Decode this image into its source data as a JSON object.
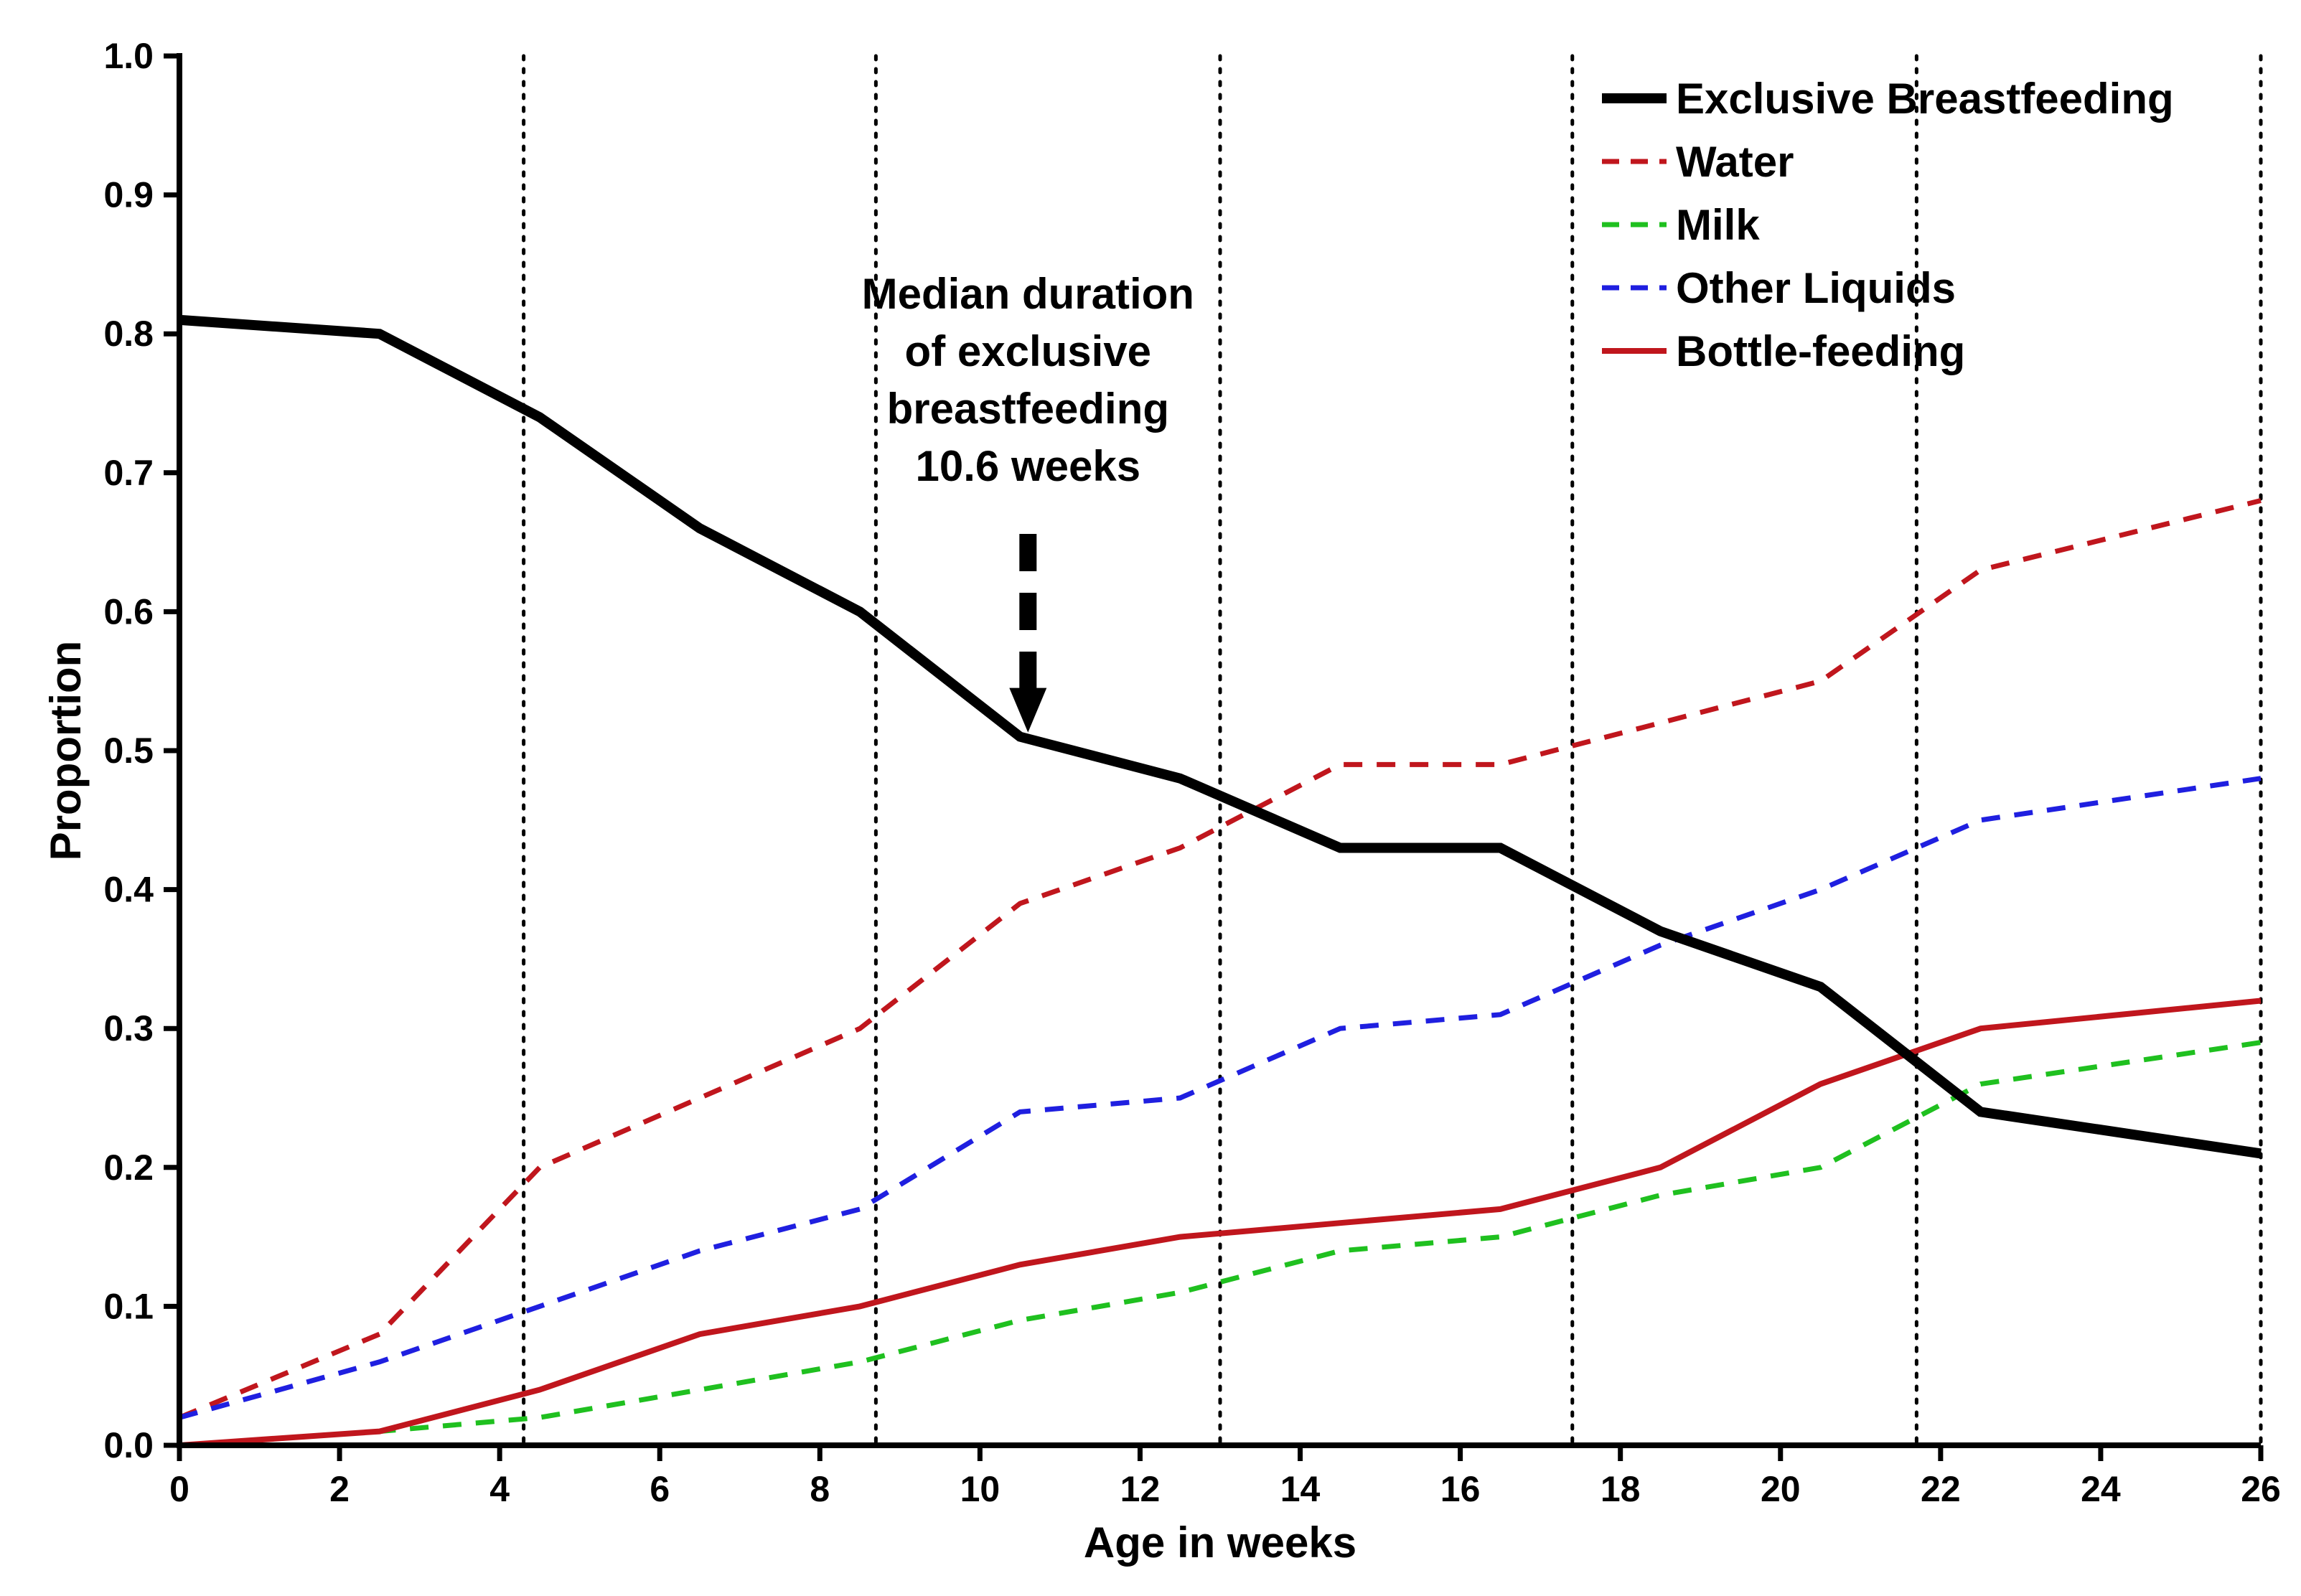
{
  "chart_data": {
    "type": "line",
    "title": "",
    "xlabel": "Age in weeks",
    "ylabel": "Proportion",
    "xlim": [
      0,
      26
    ],
    "ylim": [
      0,
      1.0
    ],
    "x_ticks": [
      0,
      2,
      4,
      6,
      8,
      10,
      12,
      14,
      16,
      18,
      20,
      22,
      24,
      26
    ],
    "x_tick_labels": [
      "0",
      "2",
      "4",
      "6",
      "8",
      "10",
      "12",
      "14",
      "16",
      "18",
      "20",
      "22",
      "24",
      "26"
    ],
    "y_ticks": [
      0,
      0.1,
      0.2,
      0.3,
      0.4,
      0.5,
      0.6,
      0.7,
      0.8,
      0.9,
      1.0
    ],
    "y_tick_labels": [
      "0.0",
      "0.1",
      "0.2",
      "0.3",
      "0.4",
      "0.5",
      "0.6",
      "0.7",
      "0.8",
      "0.9",
      "1.0"
    ],
    "vertical_reference_lines": [
      4.3,
      8.7,
      13.0,
      17.4,
      21.7,
      26.0
    ],
    "legend_position": "top-right",
    "series": [
      {
        "name": "Exclusive Breastfeeding",
        "color": "#000000",
        "style": "solid-thick",
        "x": [
          0,
          2.5,
          4.5,
          6.5,
          8.5,
          10.5,
          12.5,
          14.5,
          16.5,
          18.5,
          20.5,
          22.5,
          26
        ],
        "values": [
          0.81,
          0.8,
          0.74,
          0.66,
          0.6,
          0.51,
          0.48,
          0.43,
          0.43,
          0.37,
          0.33,
          0.24,
          0.21
        ]
      },
      {
        "name": "Water",
        "color": "#c0161d",
        "style": "dashed",
        "x": [
          0,
          2.5,
          4.5,
          6.5,
          8.5,
          10.5,
          12.5,
          14.5,
          16.5,
          18.5,
          20.5,
          22.5,
          26
        ],
        "values": [
          0.02,
          0.08,
          0.2,
          0.25,
          0.3,
          0.39,
          0.43,
          0.49,
          0.49,
          0.52,
          0.55,
          0.63,
          0.68
        ]
      },
      {
        "name": "Milk",
        "color": "#1fc01f",
        "style": "dashed",
        "x": [
          0,
          2.5,
          4.5,
          6.5,
          8.5,
          10.5,
          12.5,
          14.5,
          16.5,
          18.5,
          20.5,
          22.5,
          26
        ],
        "values": [
          0.0,
          0.01,
          0.02,
          0.04,
          0.06,
          0.09,
          0.11,
          0.14,
          0.15,
          0.18,
          0.2,
          0.26,
          0.29
        ]
      },
      {
        "name": "Other Liquids",
        "color": "#1f1fe0",
        "style": "dashed",
        "x": [
          0,
          2.5,
          4.5,
          6.5,
          8.5,
          10.5,
          12.5,
          14.5,
          16.5,
          18.5,
          20.5,
          22.5,
          26
        ],
        "values": [
          0.02,
          0.06,
          0.1,
          0.14,
          0.17,
          0.24,
          0.25,
          0.3,
          0.31,
          0.36,
          0.4,
          0.45,
          0.48
        ]
      },
      {
        "name": "Bottle-feeding",
        "color": "#c0161d",
        "style": "solid",
        "x": [
          0,
          2.5,
          4.5,
          6.5,
          8.5,
          10.5,
          12.5,
          14.5,
          16.5,
          18.5,
          20.5,
          22.5,
          26
        ],
        "values": [
          0.0,
          0.01,
          0.04,
          0.08,
          0.1,
          0.13,
          0.15,
          0.16,
          0.17,
          0.2,
          0.26,
          0.3,
          0.32
        ]
      }
    ],
    "annotation": {
      "lines": [
        "Median duration",
        "of exclusive",
        "breastfeeding",
        "10.6 weeks"
      ],
      "x": 10.6,
      "y": 0.51
    }
  }
}
